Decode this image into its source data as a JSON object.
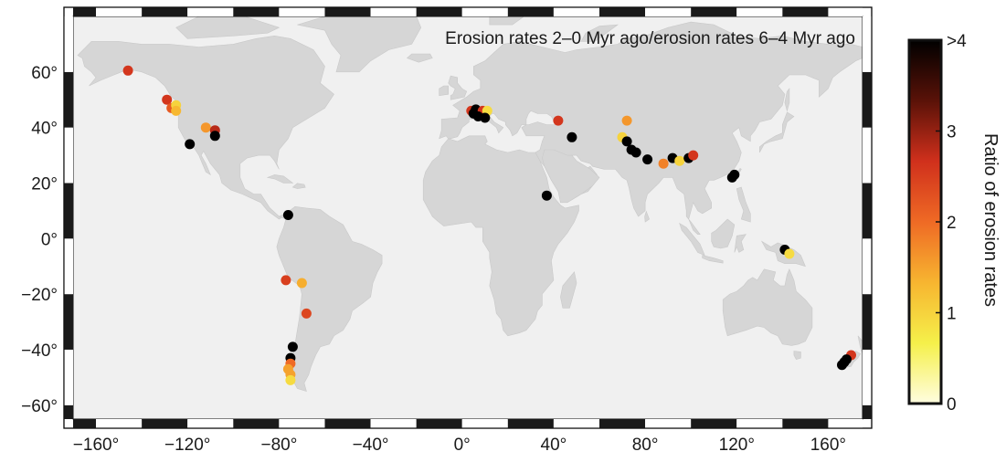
{
  "map": {
    "title": "Erosion rates 2–0 Myr ago/erosion rates 6–4 Myr ago",
    "projection": "equirectangular",
    "extent": {
      "lon": [
        -170,
        175
      ],
      "lat": [
        -65,
        80
      ]
    },
    "colors": {
      "ocean": "#f0f0f0",
      "land": "#d6d6d6",
      "frame_dark": "#1a1a1a",
      "frame_light": "#ffffff"
    },
    "x_axis": {
      "ticks": [
        {
          "value": -160,
          "label": "−160°"
        },
        {
          "value": -120,
          "label": "−120°"
        },
        {
          "value": -80,
          "label": "−80°"
        },
        {
          "value": -40,
          "label": "−40°"
        },
        {
          "value": 0,
          "label": "0°"
        },
        {
          "value": 40,
          "label": "40°"
        },
        {
          "value": 80,
          "label": "80°"
        },
        {
          "value": 120,
          "label": "120°"
        },
        {
          "value": 160,
          "label": "160°"
        }
      ]
    },
    "y_axis": {
      "ticks": [
        {
          "value": 60,
          "label": "60°"
        },
        {
          "value": 40,
          "label": "40°"
        },
        {
          "value": 20,
          "label": "20°"
        },
        {
          "value": 0,
          "label": "0°"
        },
        {
          "value": -20,
          "label": "−20°"
        },
        {
          "value": -40,
          "label": "−40°"
        },
        {
          "value": -60,
          "label": "−60°"
        }
      ]
    },
    "colorbar": {
      "label": "Ratio of erosion rates",
      "range": [
        0,
        4
      ],
      "ticks": [
        {
          "value": 4,
          "label": ">4"
        },
        {
          "value": 3,
          "label": "3"
        },
        {
          "value": 2,
          "label": "2"
        },
        {
          "value": 1,
          "label": "1"
        },
        {
          "value": 0,
          "label": "0"
        }
      ],
      "stops": [
        "#fffde0",
        "#f5f04a",
        "#f7b530",
        "#ef6a25",
        "#d0301c",
        "#5a1208",
        "#000000"
      ]
    }
  },
  "chart_data": {
    "type": "scatter",
    "title": "Erosion rates 2–0 Myr ago/erosion rates 6–4 Myr ago",
    "xlabel": "",
    "ylabel": "",
    "colorbar_label": "Ratio of erosion rates",
    "colorbar_range": [
      0,
      4
    ],
    "x_range": [
      -170,
      175
    ],
    "y_range": [
      -65,
      80
    ],
    "points": [
      {
        "lon": -146,
        "lat": 60.5,
        "ratio": 2.6
      },
      {
        "lon": -129,
        "lat": 50,
        "ratio": 2.6
      },
      {
        "lon": -127,
        "lat": 47,
        "ratio": 2.2
      },
      {
        "lon": -125,
        "lat": 48,
        "ratio": 1.0
      },
      {
        "lon": -125,
        "lat": 46,
        "ratio": 1.3
      },
      {
        "lon": -112,
        "lat": 40,
        "ratio": 1.6
      },
      {
        "lon": -108,
        "lat": 39,
        "ratio": 2.8
      },
      {
        "lon": -108,
        "lat": 37,
        "ratio": 4.5
      },
      {
        "lon": -119,
        "lat": 34,
        "ratio": 4.5
      },
      {
        "lon": -76,
        "lat": 8.5,
        "ratio": 4.5
      },
      {
        "lon": -77,
        "lat": -15,
        "ratio": 2.5
      },
      {
        "lon": -70,
        "lat": -16,
        "ratio": 1.4
      },
      {
        "lon": -68,
        "lat": -27,
        "ratio": 2.4
      },
      {
        "lon": -74,
        "lat": -39,
        "ratio": 4.5
      },
      {
        "lon": -75,
        "lat": -43,
        "ratio": 4.5
      },
      {
        "lon": -75,
        "lat": -45,
        "ratio": 2.0
      },
      {
        "lon": -76,
        "lat": -47,
        "ratio": 1.5
      },
      {
        "lon": -75,
        "lat": -49,
        "ratio": 1.5
      },
      {
        "lon": -75,
        "lat": -51,
        "ratio": 0.9
      },
      {
        "lon": 4,
        "lat": 46,
        "ratio": 2.6
      },
      {
        "lon": 5,
        "lat": 45,
        "ratio": 4.5
      },
      {
        "lon": 6,
        "lat": 46.5,
        "ratio": 4.5
      },
      {
        "lon": 9,
        "lat": 46,
        "ratio": 2.6
      },
      {
        "lon": 11,
        "lat": 46,
        "ratio": 0.9
      },
      {
        "lon": 7,
        "lat": 44,
        "ratio": 4.5
      },
      {
        "lon": 10,
        "lat": 43.5,
        "ratio": 4.5
      },
      {
        "lon": 42,
        "lat": 42.5,
        "ratio": 2.6
      },
      {
        "lon": 48,
        "lat": 36.5,
        "ratio": 4.5
      },
      {
        "lon": 37,
        "lat": 15.5,
        "ratio": 4.5
      },
      {
        "lon": 72,
        "lat": 42.5,
        "ratio": 1.6
      },
      {
        "lon": 70,
        "lat": 36.5,
        "ratio": 1.0
      },
      {
        "lon": 72,
        "lat": 35,
        "ratio": 4.5
      },
      {
        "lon": 74,
        "lat": 32,
        "ratio": 4.5
      },
      {
        "lon": 76,
        "lat": 31,
        "ratio": 4.5
      },
      {
        "lon": 81,
        "lat": 28.5,
        "ratio": 4.5
      },
      {
        "lon": 88,
        "lat": 27,
        "ratio": 1.8
      },
      {
        "lon": 92,
        "lat": 29,
        "ratio": 4.5
      },
      {
        "lon": 95,
        "lat": 28,
        "ratio": 1.0
      },
      {
        "lon": 99,
        "lat": 29,
        "ratio": 4.5
      },
      {
        "lon": 101,
        "lat": 30,
        "ratio": 2.6
      },
      {
        "lon": 118,
        "lat": 22,
        "ratio": 4.5
      },
      {
        "lon": 119,
        "lat": 23,
        "ratio": 4.5
      },
      {
        "lon": 141,
        "lat": -4,
        "ratio": 4.5
      },
      {
        "lon": 143,
        "lat": -5.5,
        "ratio": 0.9
      },
      {
        "lon": 170,
        "lat": -42,
        "ratio": 2.6
      },
      {
        "lon": 168,
        "lat": -43.5,
        "ratio": 4.5
      },
      {
        "lon": 167,
        "lat": -44.5,
        "ratio": 4.5
      },
      {
        "lon": 166,
        "lat": -45.5,
        "ratio": 4.5
      }
    ]
  }
}
